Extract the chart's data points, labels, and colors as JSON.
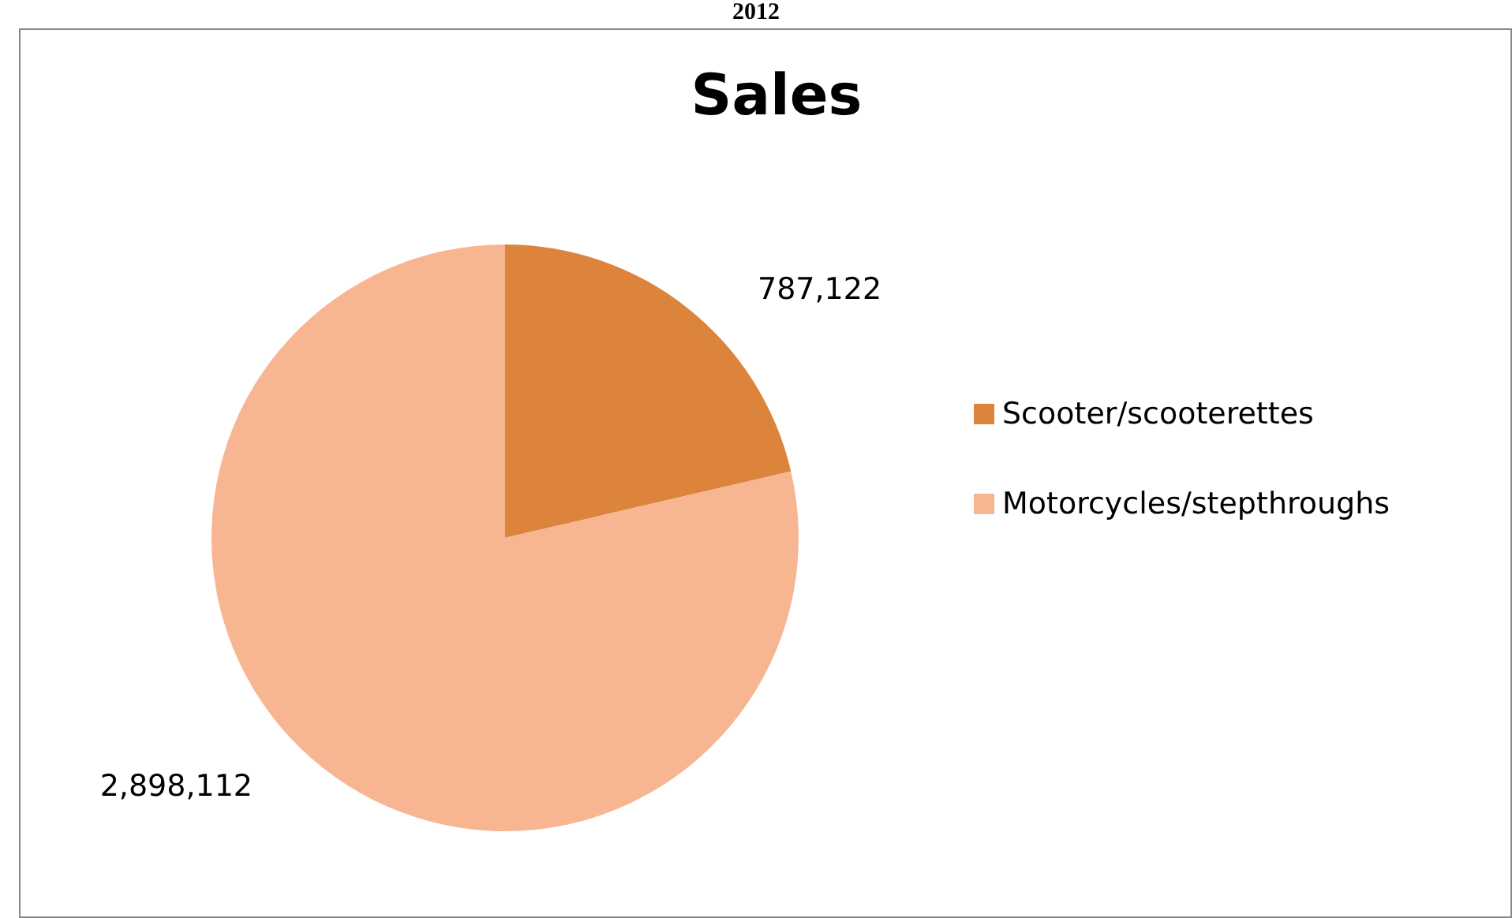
{
  "chart_data": {
    "type": "pie",
    "title": "Sales",
    "annotations": [
      "2012"
    ],
    "categories": [
      "Scooter/scooterettes",
      "Motorcycles/stepthroughs"
    ],
    "values": [
      787122,
      2898112
    ],
    "colors": [
      "#dc843c",
      "#f8b592"
    ],
    "value_labels": [
      "787,122",
      "2,898,112"
    ],
    "legend": "right"
  }
}
